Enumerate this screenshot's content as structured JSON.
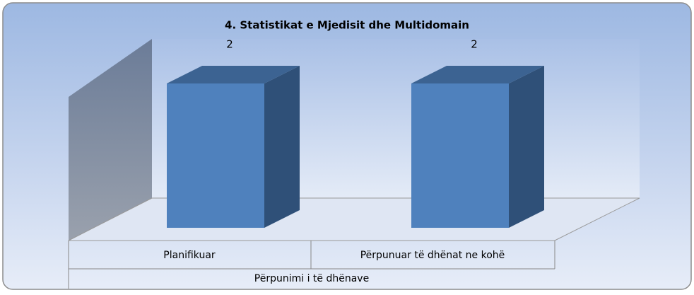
{
  "chart_data": {
    "type": "bar3d",
    "title": "4. Statistikat e Mjedisit dhe Multidomain",
    "categories": [
      "Planifikuar",
      "Përpunuar të dhënat ne kohë"
    ],
    "group_label": "Përpunimi i të dhënave",
    "values": [
      2,
      2
    ],
    "color": "#4f81bd"
  }
}
